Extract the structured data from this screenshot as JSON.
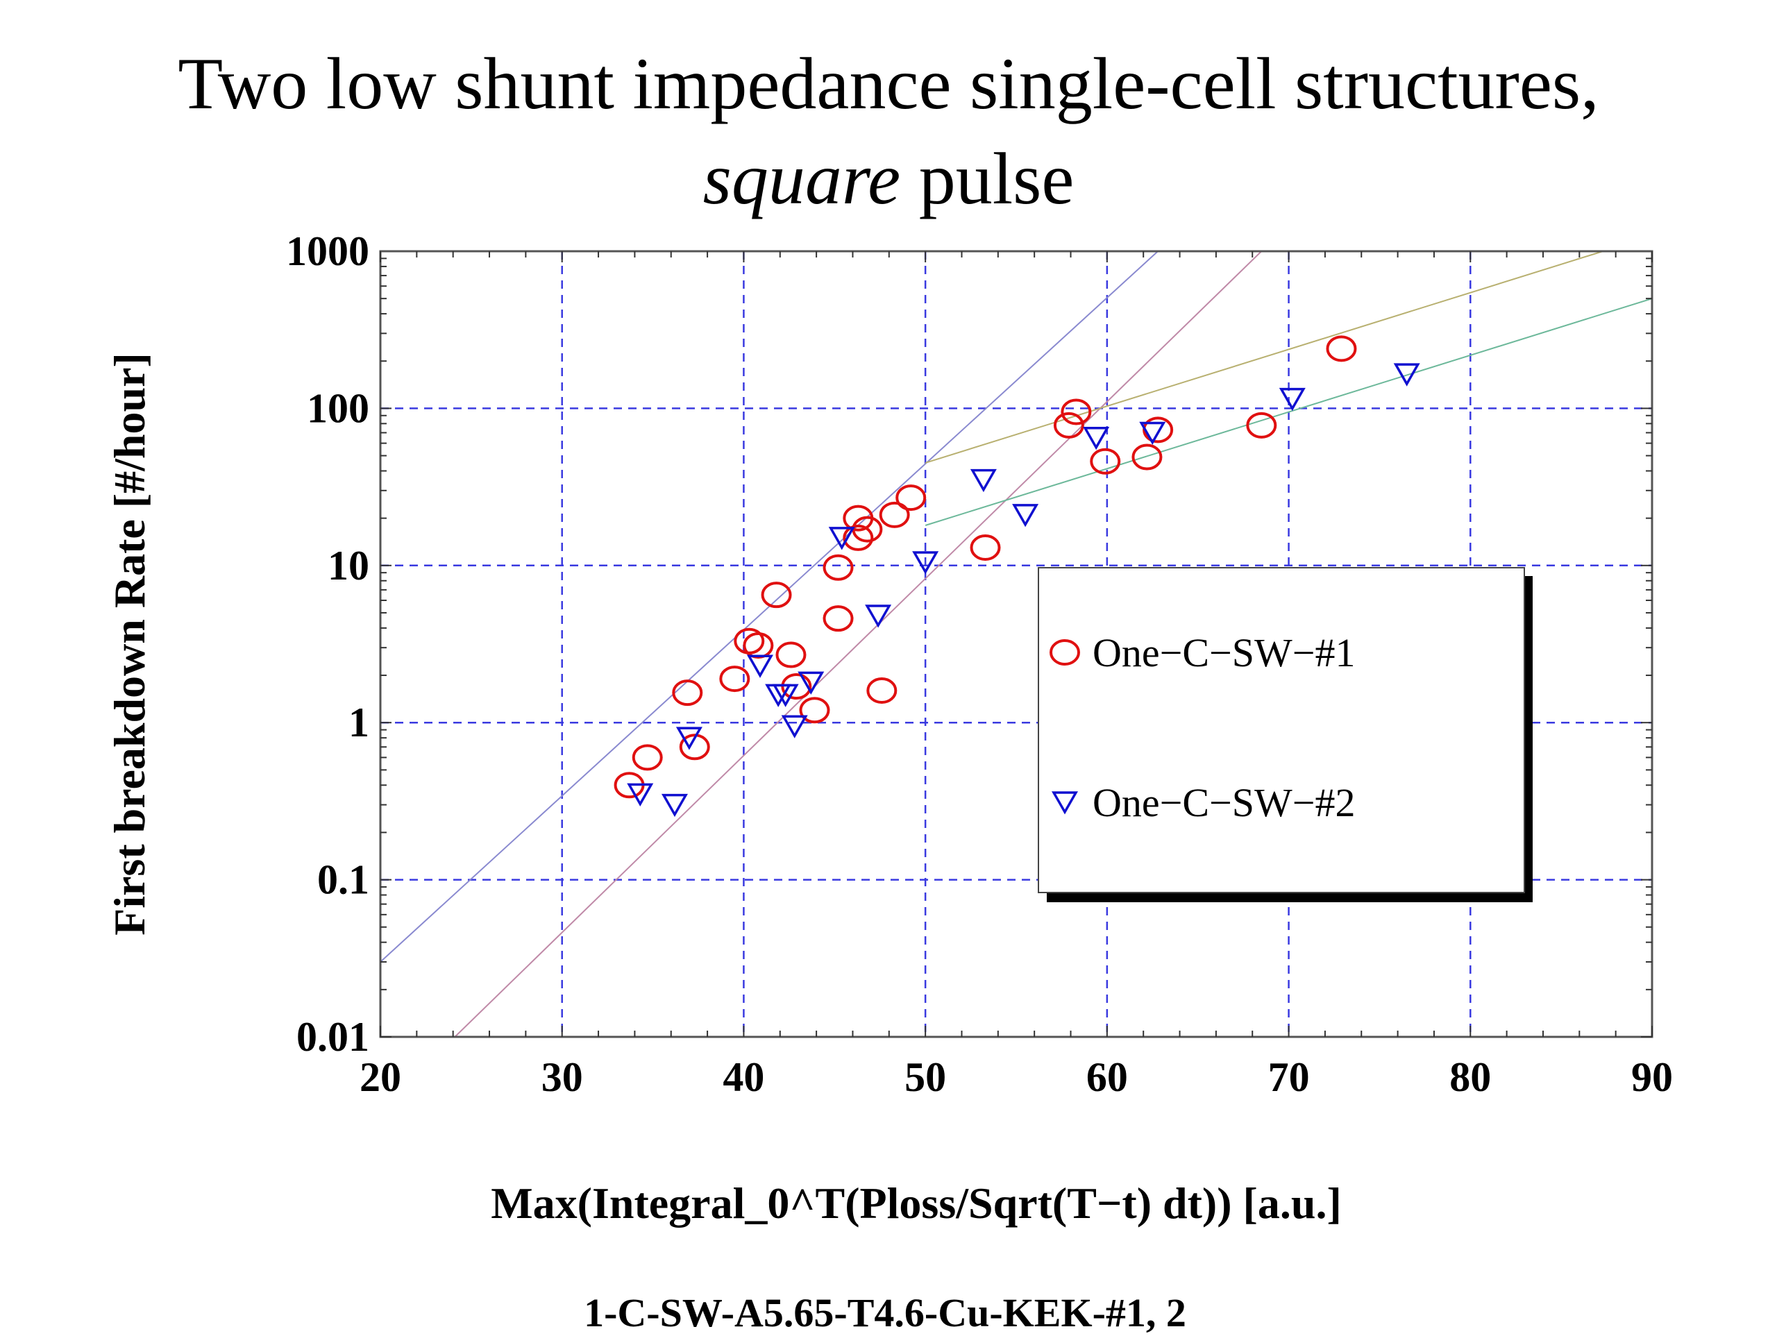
{
  "title": {
    "line1": "Two low shunt impedance single-cell structures,",
    "line2_italic": "square",
    "line2_rest": " pulse"
  },
  "footnote": "1-C-SW-A5.65-T4.6-Cu-KEK-#1, 2",
  "chart_data": {
    "type": "scatter",
    "xlabel": "Max(Integral_0^T(Ploss/Sqrt(T−t) dt)) [a.u.]",
    "ylabel": "First breakdown Rate [#/hour]",
    "xlim": [
      20,
      90
    ],
    "ylim": [
      0.01,
      1000
    ],
    "yscale": "log",
    "x_ticks": [
      "20",
      "30",
      "40",
      "50",
      "60",
      "70",
      "80",
      "90"
    ],
    "y_ticks": [
      "0.01",
      "0.1",
      "1",
      "10",
      "100",
      "1000"
    ],
    "grid": true,
    "legend_position": "center-right",
    "series": [
      {
        "name": "One−C−SW−#1",
        "marker": "circle",
        "color": "#e01010",
        "points": [
          [
            33.7,
            0.4
          ],
          [
            34.7,
            0.6
          ],
          [
            36.9,
            1.55
          ],
          [
            37.3,
            0.7
          ],
          [
            39.5,
            1.9
          ],
          [
            40.3,
            3.3
          ],
          [
            40.8,
            3.1
          ],
          [
            41.8,
            6.5
          ],
          [
            42.6,
            2.7
          ],
          [
            42.9,
            1.7
          ],
          [
            43.9,
            1.2
          ],
          [
            45.2,
            9.7
          ],
          [
            45.2,
            4.6
          ],
          [
            46.3,
            20
          ],
          [
            46.3,
            15
          ],
          [
            46.8,
            17
          ],
          [
            47.6,
            1.6
          ],
          [
            48.3,
            21
          ],
          [
            49.2,
            27
          ],
          [
            53.3,
            13
          ],
          [
            57.9,
            78
          ],
          [
            58.3,
            95
          ],
          [
            59.9,
            46
          ],
          [
            62.2,
            49
          ],
          [
            62.8,
            73
          ],
          [
            68.5,
            78
          ],
          [
            72.9,
            240
          ]
        ]
      },
      {
        "name": "One−C−SW−#2",
        "marker": "triangle-down",
        "color": "#1010d0",
        "points": [
          [
            34.3,
            0.35
          ],
          [
            36.2,
            0.3
          ],
          [
            37.0,
            0.8
          ],
          [
            40.9,
            2.3
          ],
          [
            41.9,
            1.5
          ],
          [
            42.3,
            1.5
          ],
          [
            42.8,
            0.95
          ],
          [
            43.7,
            1.8
          ],
          [
            45.4,
            15
          ],
          [
            47.4,
            4.8
          ],
          [
            50.0,
            10.5
          ],
          [
            53.2,
            35
          ],
          [
            55.5,
            21
          ],
          [
            59.4,
            65
          ],
          [
            62.5,
            70
          ],
          [
            70.2,
            115
          ],
          [
            76.5,
            165
          ]
        ]
      }
    ],
    "fit_lines": [
      {
        "color": "#8a8ad0",
        "points": [
          [
            20,
            0.03
          ],
          [
            62.8,
            1000
          ]
        ]
      },
      {
        "color": "#c08aa8",
        "points": [
          [
            24.1,
            0.01
          ],
          [
            68.5,
            1000
          ]
        ]
      },
      {
        "color": "#b8b070",
        "points": [
          [
            50,
            45
          ],
          [
            87.3,
            1000
          ]
        ]
      },
      {
        "color": "#6cb89a",
        "points": [
          [
            50,
            18
          ],
          [
            90,
            500
          ]
        ]
      }
    ]
  }
}
